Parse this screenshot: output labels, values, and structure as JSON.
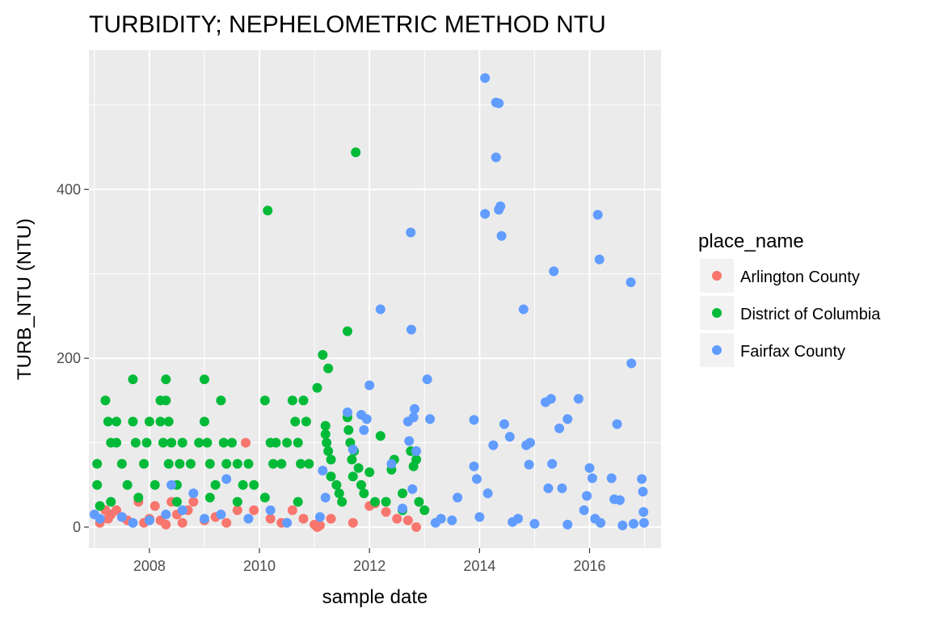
{
  "chart_data": {
    "type": "scatter",
    "title": "TURBIDITY; NEPHELOMETRIC METHOD NTU",
    "xlabel": "sample date",
    "ylabel": "TURB_NTU (NTU)",
    "x_ticks": [
      "2008",
      "2010",
      "2012",
      "2014",
      "2016"
    ],
    "y_ticks": [
      "0",
      "200",
      "400"
    ],
    "xlim": [
      2006.9,
      2017.3
    ],
    "ylim": [
      -25,
      565
    ],
    "grid": true,
    "legend_title": "place_name",
    "legend_position": "right",
    "series": [
      {
        "name": "Arlington County",
        "color": "#F8766D",
        "points": [
          [
            2007.1,
            5
          ],
          [
            2007.2,
            20
          ],
          [
            2007.25,
            10
          ],
          [
            2007.3,
            15
          ],
          [
            2007.4,
            20
          ],
          [
            2007.5,
            12
          ],
          [
            2007.6,
            8
          ],
          [
            2007.8,
            30
          ],
          [
            2007.9,
            5
          ],
          [
            2008.0,
            10
          ],
          [
            2008.1,
            25
          ],
          [
            2008.2,
            8
          ],
          [
            2008.3,
            3
          ],
          [
            2008.4,
            30
          ],
          [
            2008.5,
            15
          ],
          [
            2008.6,
            5
          ],
          [
            2008.7,
            20
          ],
          [
            2008.8,
            30
          ],
          [
            2009.0,
            8
          ],
          [
            2009.2,
            12
          ],
          [
            2009.4,
            5
          ],
          [
            2009.6,
            20
          ],
          [
            2009.75,
            100
          ],
          [
            2009.9,
            20
          ],
          [
            2010.2,
            10
          ],
          [
            2010.4,
            5
          ],
          [
            2010.6,
            20
          ],
          [
            2010.8,
            10
          ],
          [
            2011.0,
            3
          ],
          [
            2011.05,
            0
          ],
          [
            2011.1,
            2
          ],
          [
            2011.3,
            10
          ],
          [
            2011.7,
            5
          ],
          [
            2012.0,
            25
          ],
          [
            2012.1,
            28
          ],
          [
            2012.3,
            18
          ],
          [
            2012.5,
            10
          ],
          [
            2012.7,
            8
          ],
          [
            2012.85,
            0
          ]
        ]
      },
      {
        "name": "District of Columbia",
        "color": "#00BA38",
        "points": [
          [
            2007.05,
            75
          ],
          [
            2007.05,
            50
          ],
          [
            2007.1,
            25
          ],
          [
            2007.2,
            150
          ],
          [
            2007.25,
            125
          ],
          [
            2007.3,
            100
          ],
          [
            2007.4,
            125
          ],
          [
            2007.4,
            100
          ],
          [
            2007.5,
            75
          ],
          [
            2007.6,
            50
          ],
          [
            2007.7,
            175
          ],
          [
            2007.7,
            125
          ],
          [
            2007.75,
            100
          ],
          [
            2007.9,
            75
          ],
          [
            2007.95,
            100
          ],
          [
            2008.0,
            125
          ],
          [
            2008.1,
            50
          ],
          [
            2008.2,
            150
          ],
          [
            2008.2,
            125
          ],
          [
            2008.25,
            100
          ],
          [
            2008.3,
            175
          ],
          [
            2008.3,
            150
          ],
          [
            2008.35,
            125
          ],
          [
            2008.35,
            75
          ],
          [
            2008.4,
            100
          ],
          [
            2008.5,
            50
          ],
          [
            2008.55,
            75
          ],
          [
            2008.6,
            100
          ],
          [
            2008.75,
            75
          ],
          [
            2008.9,
            100
          ],
          [
            2009.0,
            175
          ],
          [
            2009.0,
            125
          ],
          [
            2009.05,
            100
          ],
          [
            2009.1,
            75
          ],
          [
            2009.2,
            50
          ],
          [
            2009.3,
            150
          ],
          [
            2009.35,
            100
          ],
          [
            2009.4,
            75
          ],
          [
            2009.5,
            100
          ],
          [
            2009.6,
            75
          ],
          [
            2009.7,
            50
          ],
          [
            2009.8,
            75
          ],
          [
            2009.9,
            50
          ],
          [
            2010.1,
            150
          ],
          [
            2010.15,
            375
          ],
          [
            2010.2,
            100
          ],
          [
            2010.25,
            75
          ],
          [
            2010.3,
            100
          ],
          [
            2010.4,
            75
          ],
          [
            2010.5,
            100
          ],
          [
            2010.6,
            150
          ],
          [
            2010.65,
            125
          ],
          [
            2010.7,
            100
          ],
          [
            2010.75,
            75
          ],
          [
            2010.8,
            150
          ],
          [
            2010.85,
            125
          ],
          [
            2010.9,
            75
          ],
          [
            2011.05,
            165
          ],
          [
            2011.15,
            204
          ],
          [
            2011.2,
            120
          ],
          [
            2011.2,
            110
          ],
          [
            2011.22,
            100
          ],
          [
            2011.25,
            188
          ],
          [
            2011.25,
            90
          ],
          [
            2011.3,
            80
          ],
          [
            2011.3,
            60
          ],
          [
            2011.4,
            50
          ],
          [
            2011.45,
            40
          ],
          [
            2011.6,
            232
          ],
          [
            2011.6,
            130
          ],
          [
            2011.62,
            115
          ],
          [
            2011.65,
            100
          ],
          [
            2011.68,
            80
          ],
          [
            2011.7,
            60
          ],
          [
            2011.72,
            90
          ],
          [
            2011.75,
            444
          ],
          [
            2011.8,
            70
          ],
          [
            2011.85,
            50
          ],
          [
            2011.9,
            40
          ],
          [
            2012.0,
            65
          ],
          [
            2012.1,
            30
          ],
          [
            2012.2,
            108
          ],
          [
            2012.4,
            68
          ],
          [
            2012.45,
            80
          ],
          [
            2012.6,
            20
          ],
          [
            2012.75,
            90
          ],
          [
            2012.8,
            72
          ],
          [
            2012.85,
            80
          ],
          [
            2012.9,
            30
          ],
          [
            2013.0,
            20
          ],
          [
            2007.3,
            30
          ],
          [
            2007.8,
            35
          ],
          [
            2008.5,
            30
          ],
          [
            2009.1,
            35
          ],
          [
            2009.6,
            30
          ],
          [
            2010.1,
            35
          ],
          [
            2010.7,
            30
          ],
          [
            2011.5,
            30
          ],
          [
            2012.3,
            30
          ],
          [
            2012.6,
            40
          ]
        ]
      },
      {
        "name": "Fairfax County",
        "color": "#619CFF",
        "points": [
          [
            2007.0,
            15
          ],
          [
            2007.1,
            10
          ],
          [
            2007.5,
            12
          ],
          [
            2007.7,
            5
          ],
          [
            2008.0,
            8
          ],
          [
            2008.3,
            15
          ],
          [
            2008.4,
            50
          ],
          [
            2008.6,
            20
          ],
          [
            2008.8,
            40
          ],
          [
            2009.0,
            10
          ],
          [
            2009.3,
            15
          ],
          [
            2009.4,
            57
          ],
          [
            2009.8,
            10
          ],
          [
            2010.2,
            20
          ],
          [
            2010.5,
            5
          ],
          [
            2011.1,
            12
          ],
          [
            2011.15,
            67
          ],
          [
            2011.2,
            35
          ],
          [
            2011.6,
            136
          ],
          [
            2011.7,
            92
          ],
          [
            2011.85,
            133
          ],
          [
            2011.9,
            115
          ],
          [
            2011.95,
            128
          ],
          [
            2012.0,
            168
          ],
          [
            2012.2,
            258
          ],
          [
            2012.4,
            75
          ],
          [
            2012.6,
            22
          ],
          [
            2012.7,
            125
          ],
          [
            2012.72,
            102
          ],
          [
            2012.75,
            349
          ],
          [
            2012.76,
            234
          ],
          [
            2012.78,
            45
          ],
          [
            2012.8,
            130
          ],
          [
            2012.82,
            140
          ],
          [
            2012.85,
            90
          ],
          [
            2013.05,
            175
          ],
          [
            2013.1,
            128
          ],
          [
            2013.3,
            10
          ],
          [
            2013.6,
            35
          ],
          [
            2013.9,
            127
          ],
          [
            2013.9,
            72
          ],
          [
            2013.95,
            57
          ],
          [
            2014.1,
            532
          ],
          [
            2014.1,
            371
          ],
          [
            2014.15,
            40
          ],
          [
            2014.25,
            97
          ],
          [
            2014.3,
            503
          ],
          [
            2014.3,
            438
          ],
          [
            2014.35,
            502
          ],
          [
            2014.35,
            376
          ],
          [
            2014.38,
            380
          ],
          [
            2014.4,
            345
          ],
          [
            2014.45,
            122
          ],
          [
            2014.55,
            107
          ],
          [
            2014.7,
            10
          ],
          [
            2014.8,
            258
          ],
          [
            2014.85,
            97
          ],
          [
            2014.9,
            74
          ],
          [
            2014.92,
            100
          ],
          [
            2015.2,
            148
          ],
          [
            2015.25,
            46
          ],
          [
            2015.3,
            152
          ],
          [
            2015.32,
            75
          ],
          [
            2015.35,
            303
          ],
          [
            2015.45,
            117
          ],
          [
            2015.5,
            46
          ],
          [
            2015.6,
            128
          ],
          [
            2015.8,
            152
          ],
          [
            2015.9,
            20
          ],
          [
            2015.95,
            37
          ],
          [
            2016.0,
            70
          ],
          [
            2016.05,
            58
          ],
          [
            2016.1,
            10
          ],
          [
            2016.15,
            370
          ],
          [
            2016.18,
            317
          ],
          [
            2016.4,
            58
          ],
          [
            2016.45,
            33
          ],
          [
            2016.5,
            122
          ],
          [
            2016.55,
            32
          ],
          [
            2016.75,
            290
          ],
          [
            2016.76,
            194
          ],
          [
            2016.95,
            57
          ],
          [
            2016.97,
            42
          ],
          [
            2016.98,
            18
          ],
          [
            2016.99,
            5
          ],
          [
            2013.2,
            5
          ],
          [
            2013.5,
            8
          ],
          [
            2014.0,
            12
          ],
          [
            2014.6,
            6
          ],
          [
            2015.0,
            4
          ],
          [
            2015.6,
            3
          ],
          [
            2016.2,
            5
          ],
          [
            2016.6,
            2
          ],
          [
            2016.8,
            4
          ]
        ]
      }
    ]
  }
}
